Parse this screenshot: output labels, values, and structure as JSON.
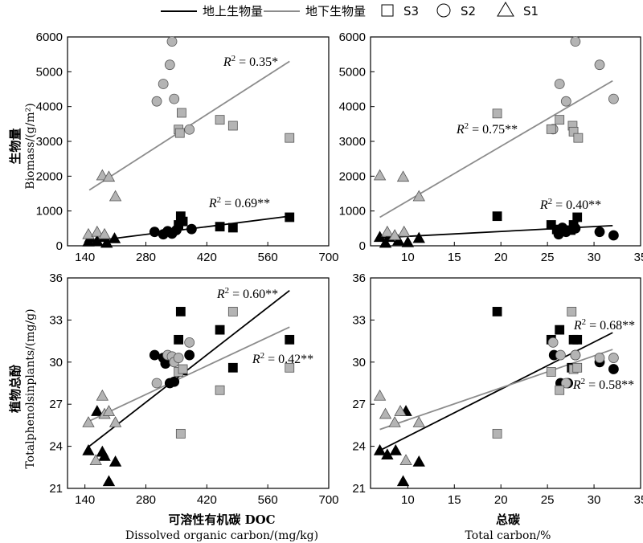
{
  "legend": {
    "above_label": "地上生物量",
    "below_label": "地下生物量",
    "s3": "S3",
    "s2": "S2",
    "s1": "S1"
  },
  "colors": {
    "above": "#000000",
    "below": "#8c8c8c",
    "below_fill": "#b4b4b4"
  },
  "y_labels": {
    "top_cn": "生物量",
    "top_en": "Biomass/(g/m²)",
    "bottom_cn": "植物总酚",
    "bottom_en": "Totalphenolsinplants/(mg/g)"
  },
  "x_labels": {
    "left_cn": "可溶性有机碳 DOC",
    "left_en": "Dissolved organic carbon/(mg/kg)",
    "right_cn": "总碳",
    "right_en": "Total carbon/%"
  },
  "chart_data": [
    {
      "id": "biomass_doc",
      "type": "scatter",
      "xlabel": "",
      "ylabel": "",
      "xlim": [
        100,
        700
      ],
      "ylim": [
        0,
        6000
      ],
      "xticks": [
        "140",
        "280",
        "420",
        "560",
        "700"
      ],
      "yticks": [
        "0",
        "1000",
        "2000",
        "3000",
        "4000",
        "5000",
        "6000"
      ],
      "series": [
        {
          "name": "地上生物量",
          "site": "S1",
          "points": [
            [
              148,
              120
            ],
            [
              168,
              140
            ],
            [
              190,
              80
            ],
            [
              208,
              210
            ],
            [
              152,
              230
            ],
            [
              185,
              250
            ]
          ]
        },
        {
          "name": "地上生物量",
          "site": "S2",
          "points": [
            [
              300,
              400
            ],
            [
              320,
              330
            ],
            [
              330,
              420
            ],
            [
              340,
              350
            ],
            [
              350,
              450
            ],
            [
              385,
              480
            ]
          ]
        },
        {
          "name": "地上生物量",
          "site": "S3",
          "points": [
            [
              355,
              600
            ],
            [
              360,
              850
            ],
            [
              365,
              700
            ],
            [
              450,
              550
            ],
            [
              480,
              520
            ],
            [
              610,
              820
            ]
          ]
        },
        {
          "name": "地下生物量",
          "site": "S1",
          "points": [
            [
              148,
              330
            ],
            [
              168,
              400
            ],
            [
              180,
              2020
            ],
            [
              185,
              330
            ],
            [
              195,
              1980
            ],
            [
              210,
              1420
            ]
          ]
        },
        {
          "name": "地下生物量",
          "site": "S2",
          "points": [
            [
              305,
              4150
            ],
            [
              320,
              4650
            ],
            [
              335,
              5200
            ],
            [
              340,
              5870
            ],
            [
              345,
              4220
            ],
            [
              380,
              3340
            ]
          ]
        },
        {
          "name": "地下生物量",
          "site": "S3",
          "points": [
            [
              355,
              3340
            ],
            [
              358,
              3240
            ],
            [
              362,
              3820
            ],
            [
              450,
              3620
            ],
            [
              480,
              3450
            ],
            [
              610,
              3100
            ]
          ]
        }
      ],
      "fits": [
        {
          "name": "地上生物量",
          "x": [
            150,
            610
          ],
          "y": [
            120,
            850
          ],
          "label": "R² = 0.69**"
        },
        {
          "name": "地下生物量",
          "x": [
            150,
            610
          ],
          "y": [
            1600,
            5300
          ],
          "label": "R² = 0.35*"
        }
      ]
    },
    {
      "id": "biomass_tc",
      "type": "scatter",
      "xlabel": "",
      "ylabel": "",
      "xlim": [
        6,
        35
      ],
      "ylim": [
        0,
        6000
      ],
      "xticks": [
        "10",
        "15",
        "20",
        "25",
        "30",
        "35"
      ],
      "yticks": [
        "0",
        "1000",
        "2000",
        "3000",
        "4000",
        "5000",
        "6000"
      ],
      "series": [
        {
          "name": "地上生物量",
          "site": "S1",
          "points": [
            [
              7,
              250
            ],
            [
              8,
              250
            ],
            [
              9,
              150
            ],
            [
              10,
              100
            ],
            [
              11.2,
              220
            ],
            [
              7.6,
              80
            ]
          ]
        },
        {
          "name": "地上生物量",
          "site": "S2",
          "points": [
            [
              26.2,
              330
            ],
            [
              27,
              400
            ],
            [
              28,
              500
            ],
            [
              30.6,
              400
            ],
            [
              32.1,
              300
            ],
            [
              26.6,
              520
            ]
          ]
        },
        {
          "name": "地上生物量",
          "site": "S3",
          "points": [
            [
              19.6,
              850
            ],
            [
              25.4,
              600
            ],
            [
              26,
              470
            ],
            [
              27.5,
              450
            ],
            [
              27.8,
              600
            ],
            [
              28.2,
              820
            ]
          ]
        },
        {
          "name": "地下生物量",
          "site": "S1",
          "points": [
            [
              7,
              2020
            ],
            [
              7.8,
              400
            ],
            [
              8.6,
              300
            ],
            [
              9.5,
              1980
            ],
            [
              9.6,
              400
            ],
            [
              11.2,
              1420
            ]
          ]
        },
        {
          "name": "地下生物量",
          "site": "S2",
          "points": [
            [
              25.6,
              3350
            ],
            [
              26.3,
              4650
            ],
            [
              27,
              4150
            ],
            [
              28,
              5870
            ],
            [
              30.6,
              5200
            ],
            [
              32.1,
              4220
            ]
          ]
        },
        {
          "name": "地下生物量",
          "site": "S3",
          "points": [
            [
              19.6,
              3800
            ],
            [
              25.4,
              3350
            ],
            [
              26.3,
              3620
            ],
            [
              27.7,
              3450
            ],
            [
              27.8,
              3280
            ],
            [
              28.3,
              3100
            ]
          ]
        }
      ],
      "fits": [
        {
          "name": "地上生物量",
          "x": [
            7,
            32
          ],
          "y": [
            230,
            580
          ],
          "label": "R² = 0.40**"
        },
        {
          "name": "地下生物量",
          "x": [
            7,
            32
          ],
          "y": [
            820,
            4740
          ],
          "label": "R² = 0.75**"
        }
      ]
    },
    {
      "id": "phenols_doc",
      "type": "scatter",
      "xlabel": "",
      "ylabel": "",
      "xlim": [
        100,
        700
      ],
      "ylim": [
        21,
        36
      ],
      "xticks": [
        "140",
        "280",
        "420",
        "560",
        "700"
      ],
      "yticks": [
        "21",
        "24",
        "27",
        "30",
        "33",
        "36"
      ],
      "series": [
        {
          "name": "地上生物量",
          "site": "S1",
          "points": [
            [
              148,
              23.7
            ],
            [
              168,
              26.5
            ],
            [
              180,
              23.6
            ],
            [
              185,
              23.3
            ],
            [
              195,
              21.5
            ],
            [
              210,
              22.9
            ]
          ]
        },
        {
          "name": "地上生物量",
          "site": "S2",
          "points": [
            [
              300,
              30.5
            ],
            [
              320,
              30.3
            ],
            [
              325,
              29.9
            ],
            [
              335,
              28.5
            ],
            [
              345,
              28.6
            ],
            [
              380,
              30.5
            ]
          ]
        },
        {
          "name": "地上生物量",
          "site": "S3",
          "points": [
            [
              355,
              31.6
            ],
            [
              360,
              33.6
            ],
            [
              365,
              29.4
            ],
            [
              450,
              32.3
            ],
            [
              480,
              29.6
            ],
            [
              610,
              31.6
            ]
          ]
        },
        {
          "name": "地下生物量",
          "site": "S1",
          "points": [
            [
              148,
              25.7
            ],
            [
              165,
              23.0
            ],
            [
              180,
              27.6
            ],
            [
              185,
              26.3
            ],
            [
              195,
              26.5
            ],
            [
              210,
              25.7
            ]
          ]
        },
        {
          "name": "地下生物量",
          "site": "S2",
          "points": [
            [
              305,
              28.5
            ],
            [
              330,
              30.5
            ],
            [
              340,
              30.4
            ],
            [
              345,
              30.0
            ],
            [
              355,
              30.3
            ],
            [
              380,
              31.4
            ]
          ]
        },
        {
          "name": "地下生物量",
          "site": "S3",
          "points": [
            [
              355,
              29.3
            ],
            [
              360,
              24.9
            ],
            [
              365,
              29.5
            ],
            [
              450,
              28.0
            ],
            [
              480,
              33.6
            ],
            [
              610,
              29.6
            ]
          ]
        }
      ],
      "fits": [
        {
          "name": "地上生物量",
          "x": [
            150,
            610
          ],
          "y": [
            24.0,
            35.1
          ],
          "label": "R² = 0.60**"
        },
        {
          "name": "地下生物量",
          "x": [
            150,
            610
          ],
          "y": [
            25.8,
            32.5
          ],
          "label": "R² = 0.42**"
        }
      ]
    },
    {
      "id": "phenols_tc",
      "type": "scatter",
      "xlabel": "",
      "ylabel": "",
      "xlim": [
        6,
        35
      ],
      "ylim": [
        21,
        36
      ],
      "xticks": [
        "10",
        "15",
        "20",
        "25",
        "30",
        "35"
      ],
      "yticks": [
        "21",
        "24",
        "27",
        "30",
        "33",
        "36"
      ],
      "series": [
        {
          "name": "地上生物量",
          "site": "S1",
          "points": [
            [
              7,
              23.7
            ],
            [
              7.8,
              23.4
            ],
            [
              8.7,
              23.7
            ],
            [
              9.5,
              21.5
            ],
            [
              9.8,
              26.5
            ],
            [
              11.2,
              22.9
            ]
          ]
        },
        {
          "name": "地上生物量",
          "site": "S2",
          "points": [
            [
              25.7,
              30.5
            ],
            [
              26.4,
              28.5
            ],
            [
              27.2,
              28.5
            ],
            [
              28,
              30.5
            ],
            [
              30.6,
              30.0
            ],
            [
              32.1,
              29.5
            ]
          ]
        },
        {
          "name": "地上生物量",
          "site": "S3",
          "points": [
            [
              19.6,
              33.6
            ],
            [
              25.4,
              31.6
            ],
            [
              26.3,
              32.3
            ],
            [
              27.6,
              29.6
            ],
            [
              27.8,
              31.6
            ],
            [
              28.2,
              31.6
            ]
          ]
        },
        {
          "name": "地下生物量",
          "site": "S1",
          "points": [
            [
              7,
              27.6
            ],
            [
              7.6,
              26.3
            ],
            [
              8.6,
              25.7
            ],
            [
              9.2,
              26.5
            ],
            [
              9.8,
              23.0
            ],
            [
              11.2,
              25.7
            ]
          ]
        },
        {
          "name": "地下生物量",
          "site": "S2",
          "points": [
            [
              25.6,
              31.4
            ],
            [
              26.4,
              30.5
            ],
            [
              27,
              28.5
            ],
            [
              28,
              30.5
            ],
            [
              30.6,
              30.3
            ],
            [
              32.1,
              30.3
            ]
          ]
        },
        {
          "name": "地下生物量",
          "site": "S3",
          "points": [
            [
              19.6,
              24.9
            ],
            [
              25.4,
              29.3
            ],
            [
              26.3,
              28.0
            ],
            [
              27.6,
              33.6
            ],
            [
              27.8,
              29.5
            ],
            [
              28.2,
              29.6
            ]
          ]
        }
      ],
      "fits": [
        {
          "name": "地上生物量",
          "x": [
            7,
            32
          ],
          "y": [
            23.7,
            32.1
          ],
          "label": "R² = 0.68**"
        },
        {
          "name": "地下生物量",
          "x": [
            7,
            32
          ],
          "y": [
            25.2,
            30.9
          ],
          "label": "R² = 0.58**"
        }
      ]
    }
  ]
}
